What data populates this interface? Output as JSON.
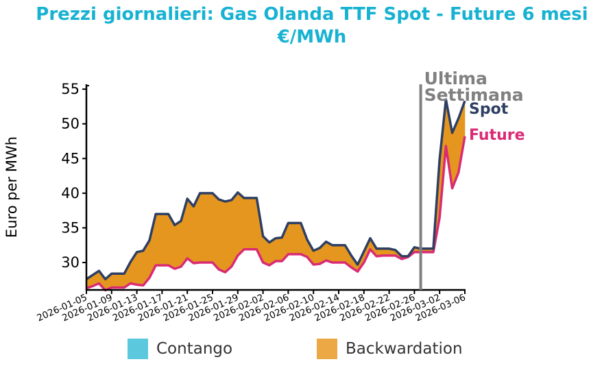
{
  "chart_data": {
    "type": "area",
    "title": "Prezzi giornalieri: Gas Olanda TTF Spot - Future 6 mesi",
    "subtitle": "€/MWh",
    "xlabel": "",
    "ylabel": "Euro per MWh",
    "ylim": [
      26.05,
      55.7
    ],
    "yticks": [
      30,
      35,
      40,
      45,
      50,
      55
    ],
    "start_date": "2026-01-05",
    "xticks": [
      "2026-01-05",
      "2026-01-09",
      "2026-01-13",
      "2026-01-17",
      "2026-01-21",
      "2026-01-25",
      "2026-01-29",
      "2026-02-02",
      "2026-02-06",
      "2026-02-10",
      "2026-02-14",
      "2026-02-18",
      "2026-02-22",
      "2026-02-26",
      "2026-03-02",
      "2026-03-06"
    ],
    "series": [
      {
        "name": "Spot",
        "color": "#2e3f63",
        "values": [
          27.6,
          28.2,
          28.8,
          27.6,
          28.4,
          28.4,
          28.4,
          30.1,
          31.5,
          31.7,
          33.2,
          37,
          37,
          37,
          35.4,
          36,
          39.2,
          38.1,
          40,
          40,
          40,
          39.1,
          38.8,
          39,
          40.1,
          39.3,
          39.3,
          39.3,
          33.8,
          32.9,
          33.5,
          33.6,
          35.7,
          35.7,
          35.7,
          33.3,
          31.7,
          32.1,
          33,
          32.5,
          32.5,
          32.5,
          31,
          29.7,
          31.6,
          33.5,
          32,
          32,
          32,
          31.8,
          30.9,
          30.9,
          32.2,
          32,
          32,
          32,
          44.9,
          53.5,
          48.7,
          50.8,
          53.3
        ]
      },
      {
        "name": "Future",
        "color": "#d92b74",
        "values": [
          26.3,
          26.6,
          27,
          26,
          26.4,
          26.4,
          26.4,
          27,
          26.8,
          26.7,
          27.8,
          29.6,
          29.6,
          29.6,
          29.1,
          29.4,
          30.6,
          29.9,
          30,
          30,
          30,
          29,
          28.6,
          29.4,
          31,
          31.9,
          31.9,
          31.9,
          30,
          29.6,
          30.2,
          30.2,
          31.2,
          31.2,
          31.2,
          30.8,
          29.7,
          29.8,
          30.3,
          30,
          30,
          30,
          29.3,
          28.7,
          30,
          31.9,
          30.9,
          31,
          31,
          31,
          30.5,
          30.8,
          31.5,
          31.5,
          31.5,
          31.5,
          36.5,
          46.8,
          40.7,
          43,
          48.2
        ]
      }
    ],
    "annotation": {
      "text_line1": "Ultima",
      "text_line2": "Settimana",
      "day_index": 53,
      "color": "#808080"
    },
    "legend": [
      {
        "label": "Contango",
        "color": "#5bc8de"
      },
      {
        "label": "Backwardation",
        "color": "#eba844"
      }
    ],
    "fill_colors": {
      "contango": "#5bc8de",
      "backwardation": "#e5961e"
    }
  }
}
